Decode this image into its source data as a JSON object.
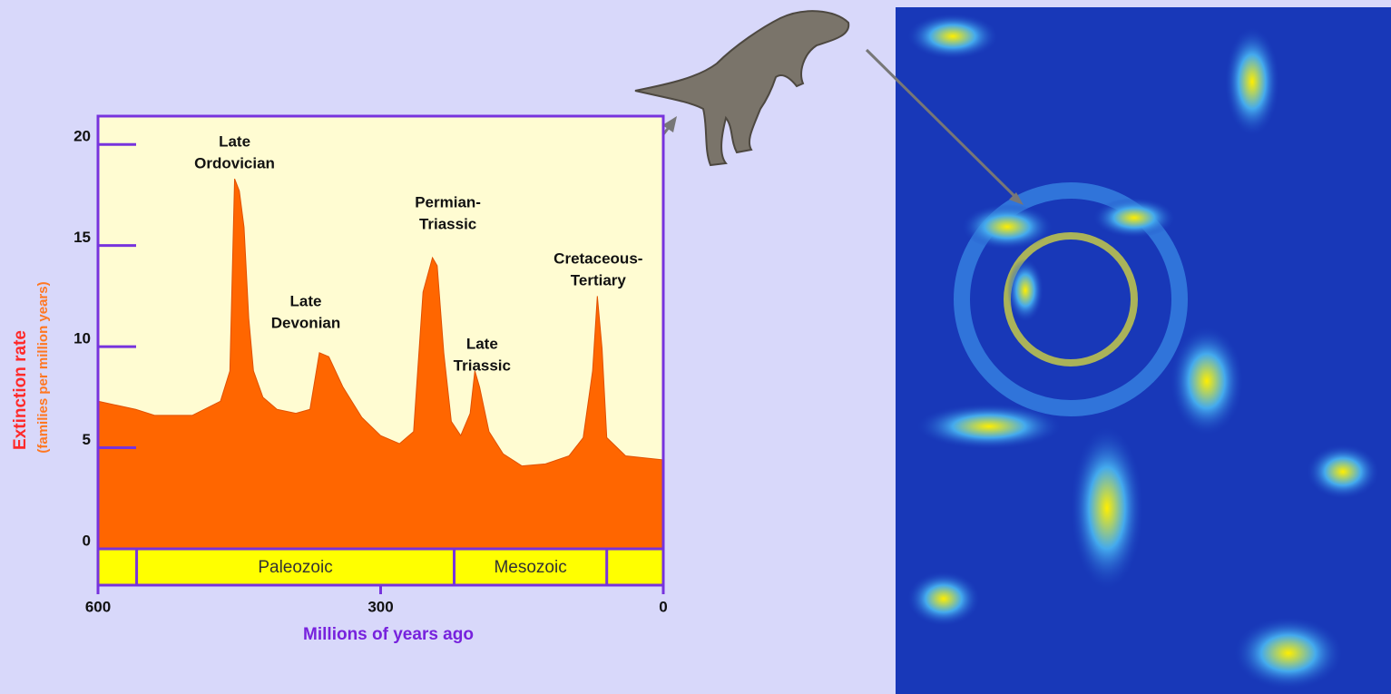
{
  "chart_data": {
    "type": "area",
    "ylabel": "Extinction rate",
    "ylabel_sub": "(families per million years)",
    "xlabel": "Millions of years ago",
    "x": [
      600,
      580,
      560,
      540,
      500,
      470,
      460,
      455,
      450,
      445,
      440,
      435,
      425,
      410,
      390,
      375,
      365,
      355,
      340,
      320,
      300,
      280,
      265,
      255,
      245,
      240,
      233,
      225,
      215,
      205,
      200,
      195,
      185,
      170,
      150,
      125,
      100,
      85,
      75,
      70,
      65,
      60,
      40,
      20,
      0
    ],
    "values": [
      7.3,
      7.1,
      6.9,
      6.6,
      6.6,
      7.3,
      8.8,
      18.3,
      17.7,
      15.9,
      11.4,
      8.8,
      7.5,
      6.9,
      6.7,
      6.9,
      9.7,
      9.5,
      8.0,
      6.5,
      5.6,
      5.2,
      5.8,
      12.7,
      14.4,
      14.0,
      9.7,
      6.3,
      5.6,
      6.7,
      8.8,
      8.0,
      5.8,
      4.7,
      4.1,
      4.2,
      4.6,
      5.5,
      8.8,
      12.5,
      9.9,
      5.5,
      4.6,
      4.5,
      4.4
    ],
    "color": "#ff6600",
    "xlim": [
      600,
      0
    ],
    "xticks": [
      600,
      300,
      0
    ],
    "ylim": [
      0,
      21.4
    ],
    "yticks": [
      0,
      5,
      10,
      15,
      20
    ],
    "annotations": [
      {
        "lines": [
          "Late",
          "Ordovician"
        ],
        "x": 455
      },
      {
        "lines": [
          "Late",
          "Devonian"
        ],
        "x": 365
      },
      {
        "lines": [
          "Permian-",
          "Triassic"
        ],
        "x": 245
      },
      {
        "lines": [
          "Late",
          "Triassic"
        ],
        "x": 200
      },
      {
        "lines": [
          "Cretaceous-",
          "Tertiary"
        ],
        "x": 70
      }
    ],
    "eras": [
      {
        "label": "Paleozoic",
        "start": 559,
        "end": 222
      },
      {
        "label": "Mesozoic",
        "start": 222,
        "end": 60
      }
    ]
  }
}
